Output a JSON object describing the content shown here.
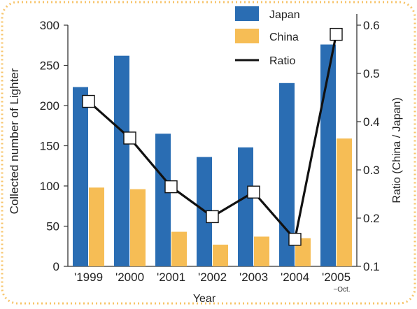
{
  "chart_data": {
    "type": "bar",
    "xlabel": "Year",
    "ylabel": "Collected number of Lighter",
    "y2label": "Ratio (China / Japan)",
    "categories": [
      "'1999",
      "'2000",
      "'2001",
      "'2002",
      "'2003",
      "'2004",
      "'2005"
    ],
    "category_note": "~Oct.",
    "ylim": [
      0,
      300
    ],
    "yticks": [
      0,
      50,
      100,
      150,
      200,
      250,
      300
    ],
    "y2lim": [
      0.1,
      0.6
    ],
    "y2ticks": [
      "0.1",
      "0.2",
      "0.3",
      "0.4",
      "0.5",
      "0.6"
    ],
    "series": [
      {
        "name": "Japan",
        "type": "bar",
        "axis": "left",
        "color": "#2a6db3",
        "values": [
          223,
          262,
          165,
          136,
          148,
          228,
          276
        ]
      },
      {
        "name": "China",
        "type": "bar",
        "axis": "left",
        "color": "#f6bd55",
        "values": [
          98,
          96,
          43,
          27,
          37,
          35,
          159
        ]
      },
      {
        "name": "Ratio",
        "type": "line",
        "axis": "right",
        "color": "#111111",
        "values": [
          0.442,
          0.366,
          0.265,
          0.203,
          0.254,
          0.156,
          0.581
        ]
      }
    ],
    "legend_position": "top-right",
    "grid": false
  }
}
